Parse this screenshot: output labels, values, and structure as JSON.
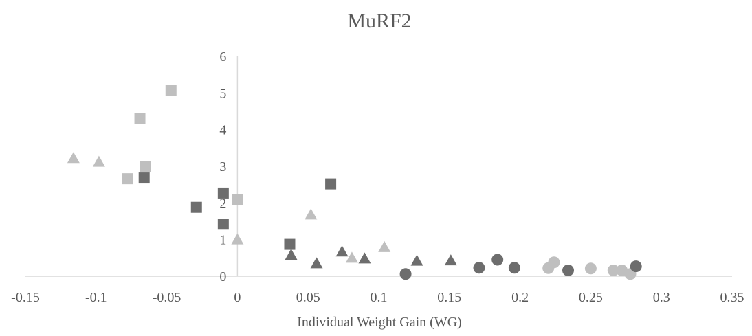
{
  "chart_data": {
    "type": "scatter",
    "title": "MuRF2",
    "xlabel": "Individual Weight Gain (WG)",
    "ylabel": "",
    "xlim": [
      -0.15,
      0.35
    ],
    "ylim": [
      0,
      6
    ],
    "x_ticks": [
      "-0.15",
      "-0.1",
      "-0.05",
      "0",
      "0.05",
      "0.1",
      "0.15",
      "0.2",
      "0.25",
      "0.3",
      "0.35"
    ],
    "y_ticks": [
      "0",
      "1",
      "2",
      "3",
      "4",
      "5",
      "6"
    ],
    "grid": false,
    "legend": "none",
    "series": [
      {
        "marker": "square",
        "color": "#bfbfbf",
        "points": [
          [
            -0.047,
            5.08
          ],
          [
            -0.069,
            4.31
          ],
          [
            -0.065,
            2.99
          ],
          [
            -0.078,
            2.66
          ],
          [
            0.0,
            2.09
          ]
        ]
      },
      {
        "marker": "square",
        "color": "#6d6d6d",
        "points": [
          [
            -0.066,
            2.68
          ],
          [
            -0.01,
            2.27
          ],
          [
            -0.029,
            1.88
          ],
          [
            -0.01,
            1.42
          ],
          [
            0.037,
            0.87
          ],
          [
            0.066,
            2.52
          ]
        ]
      },
      {
        "marker": "triangle",
        "color": "#bfbfbf",
        "points": [
          [
            -0.116,
            3.22
          ],
          [
            -0.098,
            3.12
          ],
          [
            0.0,
            1.0
          ],
          [
            0.052,
            1.68
          ],
          [
            0.081,
            0.5
          ],
          [
            0.104,
            0.79
          ]
        ]
      },
      {
        "marker": "triangle",
        "color": "#6d6d6d",
        "points": [
          [
            0.038,
            0.58
          ],
          [
            0.056,
            0.35
          ],
          [
            0.074,
            0.67
          ],
          [
            0.09,
            0.48
          ],
          [
            0.127,
            0.42
          ],
          [
            0.151,
            0.43
          ]
        ]
      },
      {
        "marker": "circle",
        "color": "#bfbfbf",
        "points": [
          [
            0.224,
            0.38
          ],
          [
            0.22,
            0.22
          ],
          [
            0.25,
            0.21
          ],
          [
            0.266,
            0.16
          ],
          [
            0.272,
            0.16
          ],
          [
            0.278,
            0.06
          ]
        ]
      },
      {
        "marker": "circle",
        "color": "#6d6d6d",
        "points": [
          [
            0.119,
            0.06
          ],
          [
            0.171,
            0.23
          ],
          [
            0.184,
            0.45
          ],
          [
            0.196,
            0.23
          ],
          [
            0.234,
            0.16
          ],
          [
            0.282,
            0.27
          ]
        ]
      }
    ]
  }
}
